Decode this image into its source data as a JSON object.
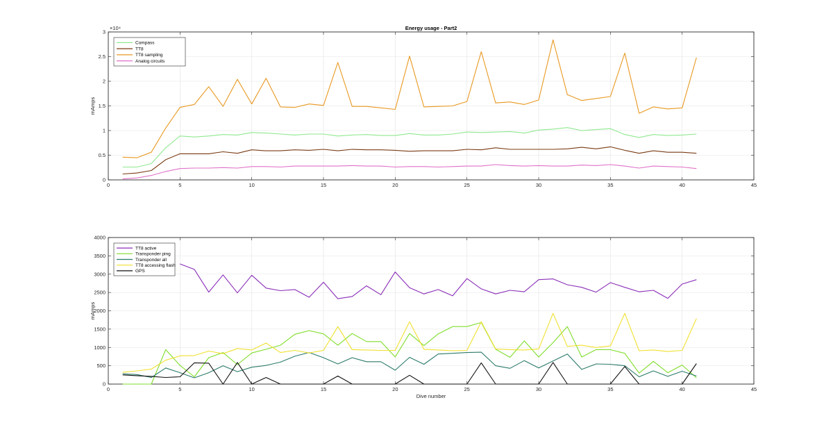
{
  "chart_data": [
    {
      "type": "line",
      "title": "Energy usage - Part2",
      "xlabel": "",
      "ylabel": "mAmps",
      "xlim": [
        0,
        45
      ],
      "ylim": [
        0,
        30000
      ],
      "xticks": [
        0,
        5,
        10,
        15,
        20,
        25,
        30,
        35,
        40,
        45
      ],
      "xtick_labels": [
        "0",
        "5",
        "10",
        "15",
        "20",
        "25",
        "30",
        "35",
        "40",
        "45"
      ],
      "yticks": [
        0,
        5000,
        10000,
        15000,
        20000,
        25000,
        30000
      ],
      "ytick_labels": [
        "0",
        "0.5",
        "1",
        "1.5",
        "2",
        "2.5",
        "3"
      ],
      "exponent_label": "×10⁴",
      "grid": true,
      "legend_position": "top-left",
      "x": [
        1,
        2,
        3,
        4,
        5,
        6,
        7,
        8,
        9,
        10,
        11,
        12,
        13,
        14,
        15,
        16,
        17,
        18,
        19,
        20,
        21,
        22,
        23,
        24,
        25,
        26,
        27,
        28,
        29,
        30,
        31,
        32,
        33,
        34,
        35,
        36,
        37,
        38,
        39,
        40,
        41
      ],
      "series": [
        {
          "name": "Compass",
          "color": "#8fe88f",
          "values": [
            2600,
            2600,
            3300,
            6500,
            8900,
            8700,
            8900,
            9200,
            9100,
            9600,
            9500,
            9300,
            9100,
            9300,
            9300,
            8900,
            9100,
            9200,
            9000,
            9000,
            9400,
            9100,
            9100,
            9300,
            9700,
            9600,
            9700,
            9800,
            9500,
            10100,
            10300,
            10600,
            10000,
            10200,
            10400,
            9200,
            8600,
            9200,
            9000,
            9100,
            9300
          ]
        },
        {
          "name": "TT8",
          "color": "#7a3a12",
          "values": [
            1200,
            1400,
            1900,
            4100,
            5300,
            5300,
            5300,
            5700,
            5400,
            6100,
            5900,
            5900,
            6100,
            6000,
            6200,
            5900,
            6200,
            6100,
            6100,
            6000,
            5800,
            5900,
            5900,
            5900,
            6200,
            6100,
            6500,
            6200,
            6200,
            6200,
            6200,
            6300,
            6600,
            6300,
            6700,
            6000,
            5400,
            5900,
            5600,
            5600,
            5400
          ]
        },
        {
          "name": "TT8 sampling",
          "color": "#e89820",
          "values": [
            4600,
            4500,
            5600,
            10500,
            14700,
            15300,
            18900,
            14900,
            20400,
            15400,
            20600,
            14800,
            14700,
            15400,
            15100,
            23800,
            14900,
            14900,
            14600,
            14300,
            25100,
            14800,
            14900,
            15000,
            15900,
            26000,
            15600,
            15800,
            15300,
            16200,
            28400,
            17300,
            16100,
            16500,
            16900,
            25700,
            13500,
            14800,
            14400,
            14600,
            24800
          ]
        },
        {
          "name": "Analog circuits",
          "color": "#e070c8",
          "values": [
            200,
            400,
            900,
            1700,
            2300,
            2400,
            2400,
            2500,
            2400,
            2700,
            2700,
            2600,
            2800,
            2800,
            2800,
            2800,
            2900,
            2800,
            2800,
            2600,
            2700,
            2700,
            2600,
            2700,
            2800,
            2800,
            3100,
            2900,
            2800,
            2900,
            2800,
            2800,
            3000,
            2900,
            3100,
            2800,
            2400,
            2800,
            2700,
            2600,
            2300
          ]
        }
      ]
    },
    {
      "type": "line",
      "title": "",
      "xlabel": "Dive number",
      "ylabel": "mAmps",
      "xlim": [
        0,
        45
      ],
      "ylim": [
        0,
        4000
      ],
      "xticks": [
        0,
        5,
        10,
        15,
        20,
        25,
        30,
        35,
        40,
        45
      ],
      "xtick_labels": [
        "0",
        "5",
        "10",
        "15",
        "20",
        "25",
        "30",
        "35",
        "40",
        "45"
      ],
      "yticks": [
        0,
        500,
        1000,
        1500,
        2000,
        2500,
        3000,
        3500,
        4000
      ],
      "ytick_labels": [
        "0",
        "500",
        "1000",
        "1500",
        "2000",
        "2500",
        "3000",
        "3500",
        "4000"
      ],
      "grid": true,
      "legend_position": "top-left",
      "x": [
        1,
        2,
        3,
        4,
        5,
        6,
        7,
        8,
        9,
        10,
        11,
        12,
        13,
        14,
        15,
        16,
        17,
        18,
        19,
        20,
        21,
        22,
        23,
        24,
        25,
        26,
        27,
        28,
        29,
        30,
        31,
        32,
        33,
        34,
        35,
        36,
        37,
        38,
        39,
        40,
        41
      ],
      "series": [
        {
          "name": "TT8 active",
          "color": "#8a2db8",
          "values": [
            null,
            null,
            null,
            null,
            3280,
            3130,
            2510,
            2980,
            2490,
            2970,
            2620,
            2550,
            2580,
            2370,
            2780,
            2330,
            2390,
            2680,
            2440,
            3060,
            2630,
            2460,
            2580,
            2410,
            2880,
            2600,
            2460,
            2560,
            2520,
            2850,
            2870,
            2710,
            2640,
            2510,
            2770,
            2640,
            2520,
            2560,
            2340,
            2730,
            2850
          ]
        },
        {
          "name": "Transponder ping",
          "color": "#7fdd2a",
          "values": [
            0,
            0,
            0,
            940,
            510,
            200,
            720,
            860,
            530,
            850,
            950,
            1060,
            1360,
            1460,
            1370,
            1060,
            1380,
            1160,
            1160,
            740,
            1380,
            1050,
            1370,
            1570,
            1570,
            1680,
            950,
            730,
            1180,
            740,
            1130,
            1570,
            740,
            940,
            940,
            840,
            300,
            620,
            310,
            520,
            170
          ]
        },
        {
          "name": "Transponder all",
          "color": "#2b7a6a",
          "values": [
            280,
            260,
            180,
            440,
            310,
            170,
            310,
            500,
            340,
            460,
            510,
            600,
            760,
            860,
            720,
            550,
            720,
            610,
            610,
            380,
            730,
            540,
            820,
            840,
            860,
            870,
            500,
            430,
            640,
            440,
            630,
            820,
            400,
            550,
            540,
            500,
            200,
            360,
            210,
            350,
            220
          ]
        },
        {
          "name": "TT8 accessing flash",
          "color": "#f0e030",
          "values": [
            320,
            360,
            410,
            650,
            770,
            780,
            900,
            830,
            970,
            930,
            1120,
            860,
            920,
            850,
            920,
            1570,
            940,
            930,
            920,
            920,
            1700,
            950,
            930,
            910,
            920,
            1700,
            960,
            940,
            930,
            960,
            1930,
            1030,
            1060,
            1000,
            1040,
            1930,
            910,
            930,
            890,
            920,
            1790
          ]
        },
        {
          "name": "GPS",
          "color": "#111111",
          "values": [
            250,
            230,
            210,
            180,
            200,
            580,
            570,
            0,
            590,
            0,
            180,
            0,
            0,
            0,
            0,
            220,
            0,
            0,
            0,
            0,
            240,
            0,
            0,
            0,
            0,
            580,
            0,
            0,
            0,
            0,
            590,
            0,
            0,
            0,
            0,
            480,
            0,
            0,
            0,
            0,
            560
          ]
        }
      ]
    }
  ]
}
